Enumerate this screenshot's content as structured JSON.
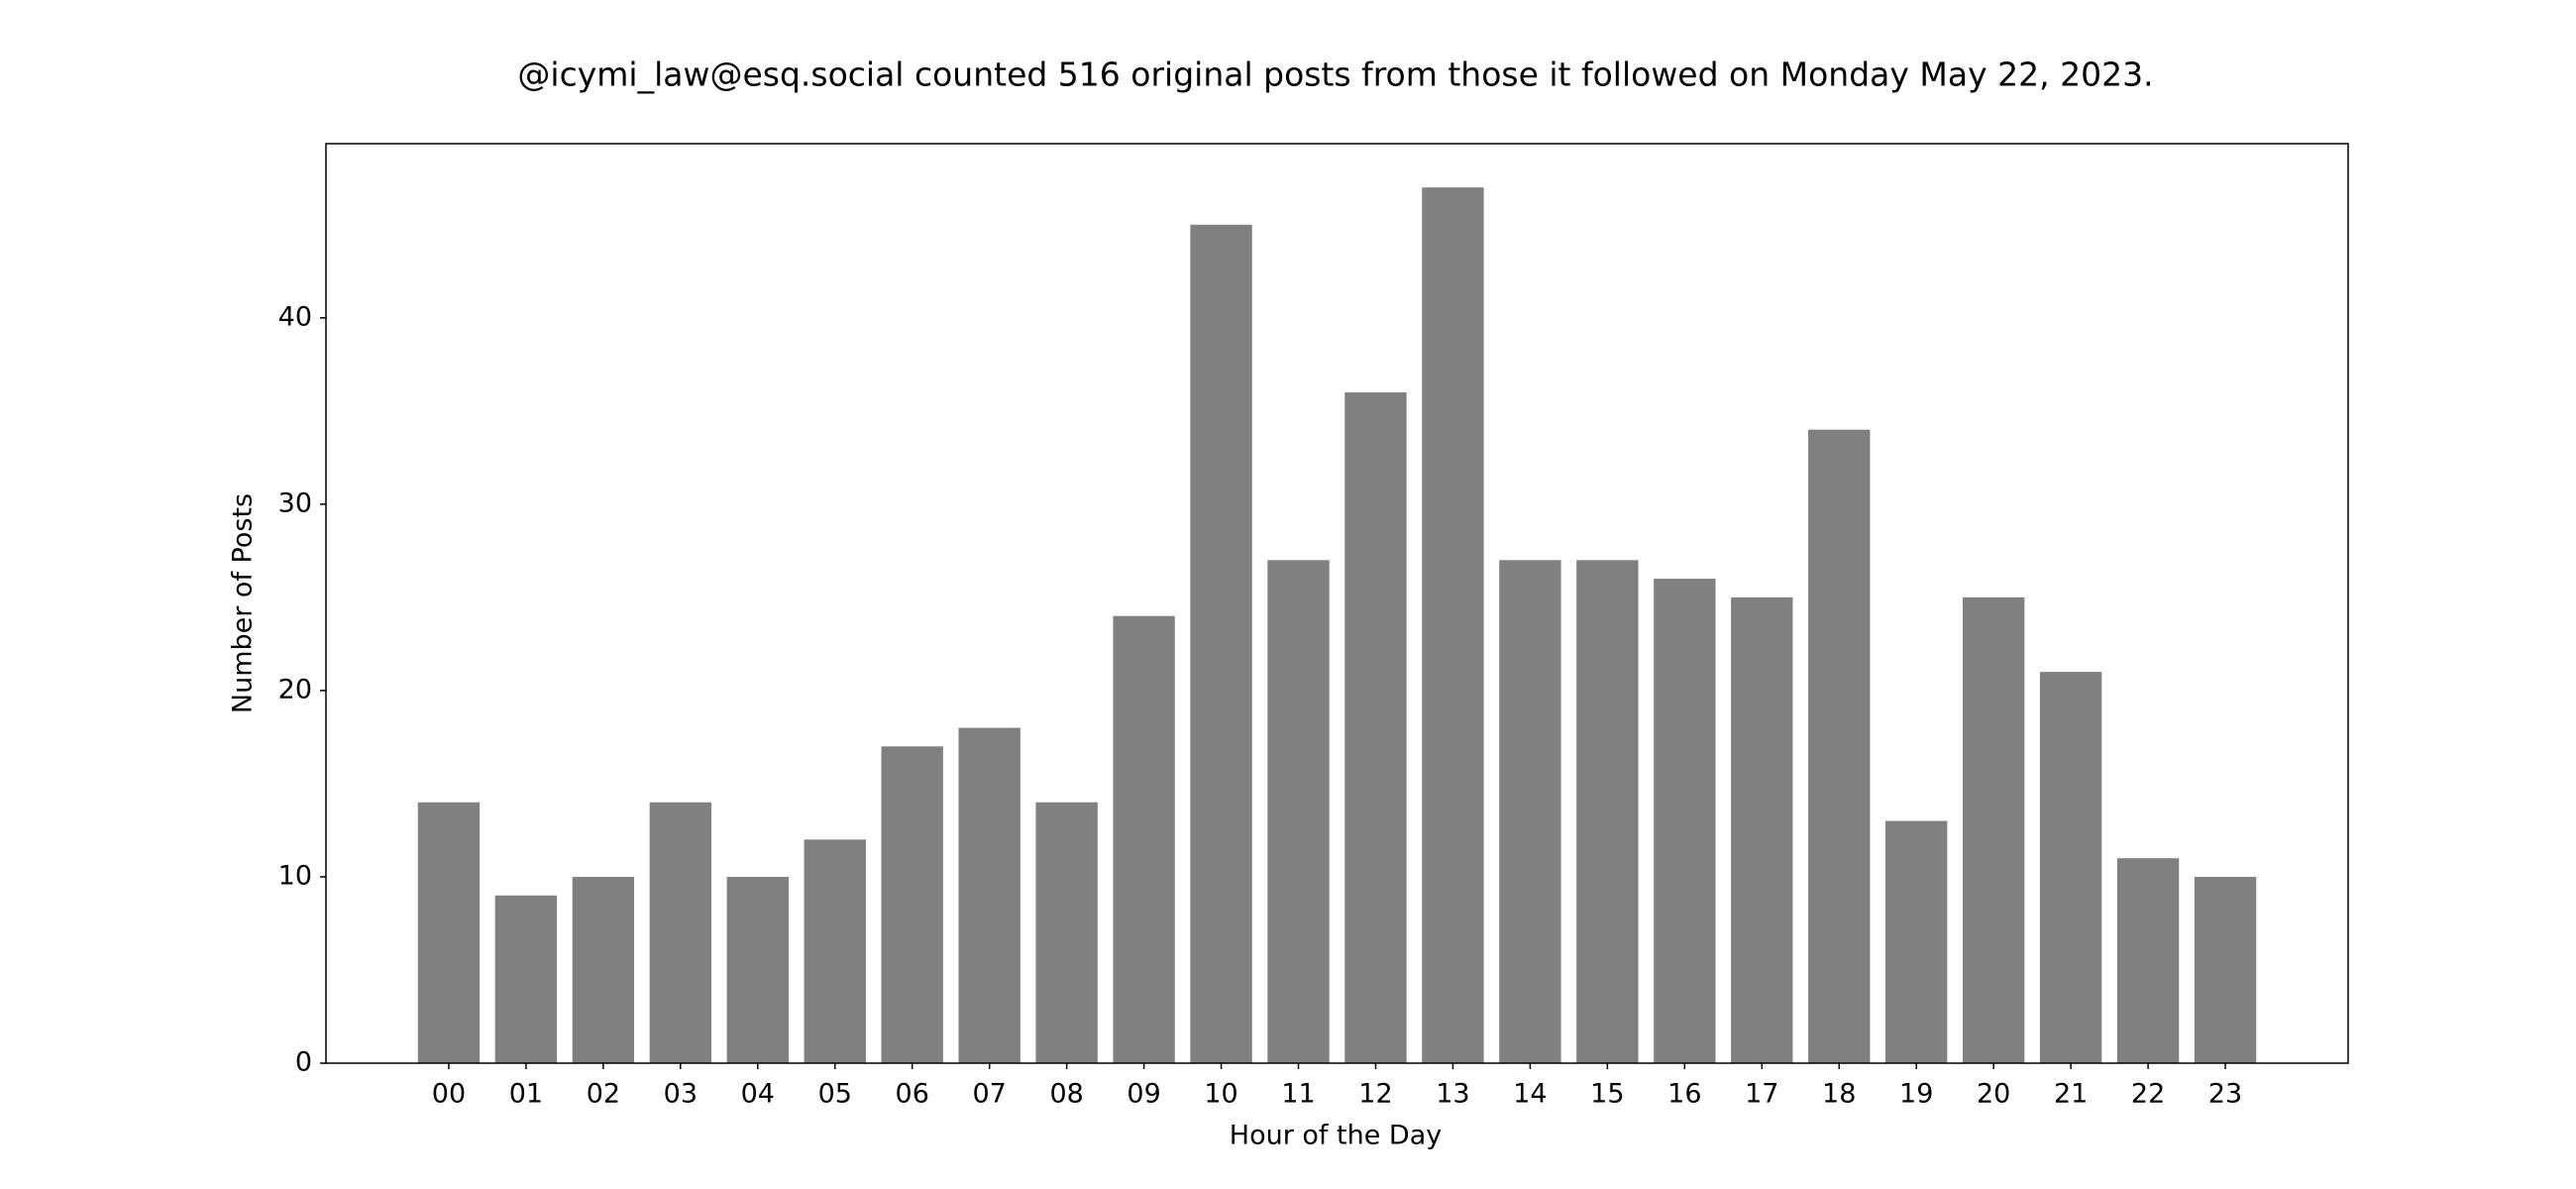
{
  "chart_data": {
    "type": "bar",
    "title": "@icymi_law@esq.social counted 516 original posts from those it followed on Monday May 22, 2023.",
    "x_label": "Hour of the Day",
    "y_label": "Number of Posts",
    "categories": [
      "00",
      "01",
      "02",
      "03",
      "04",
      "05",
      "06",
      "07",
      "08",
      "09",
      "10",
      "11",
      "12",
      "13",
      "14",
      "15",
      "16",
      "17",
      "18",
      "19",
      "20",
      "21",
      "22",
      "23"
    ],
    "values": [
      14,
      9,
      10,
      14,
      10,
      12,
      17,
      18,
      14,
      24,
      45,
      27,
      36,
      47,
      27,
      27,
      26,
      25,
      34,
      13,
      25,
      21,
      11,
      10
    ],
    "color": "#808080",
    "ylim": [
      0,
      49.35
    ],
    "yticks": [
      0,
      10,
      20,
      30,
      40
    ],
    "grid": false
  }
}
